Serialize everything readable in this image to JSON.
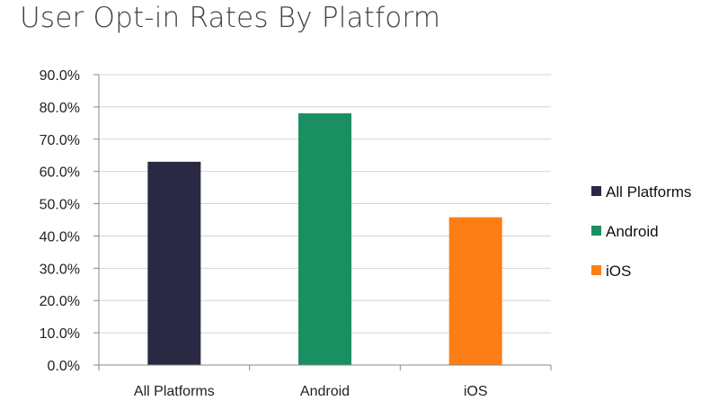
{
  "chart_data": {
    "type": "bar",
    "title": "User Opt-in Rates By Platform",
    "xlabel": "",
    "ylabel": "",
    "categories": [
      "All Platforms",
      "Android",
      "iOS"
    ],
    "values": [
      63.0,
      78.0,
      45.8
    ],
    "colors": [
      "#2a2944",
      "#1a8f62",
      "#fc7e14"
    ],
    "ylim": [
      0,
      90
    ],
    "yticks": [
      0,
      10,
      20,
      30,
      40,
      50,
      60,
      70,
      80,
      90
    ],
    "ytick_labels": [
      "0.0%",
      "10.0%",
      "20.0%",
      "30.0%",
      "40.0%",
      "50.0%",
      "60.0%",
      "70.0%",
      "80.0%",
      "90.0%"
    ],
    "grid": true,
    "legend": {
      "placement": "right",
      "entries": [
        "All Platforms",
        "Android",
        "iOS"
      ]
    }
  }
}
